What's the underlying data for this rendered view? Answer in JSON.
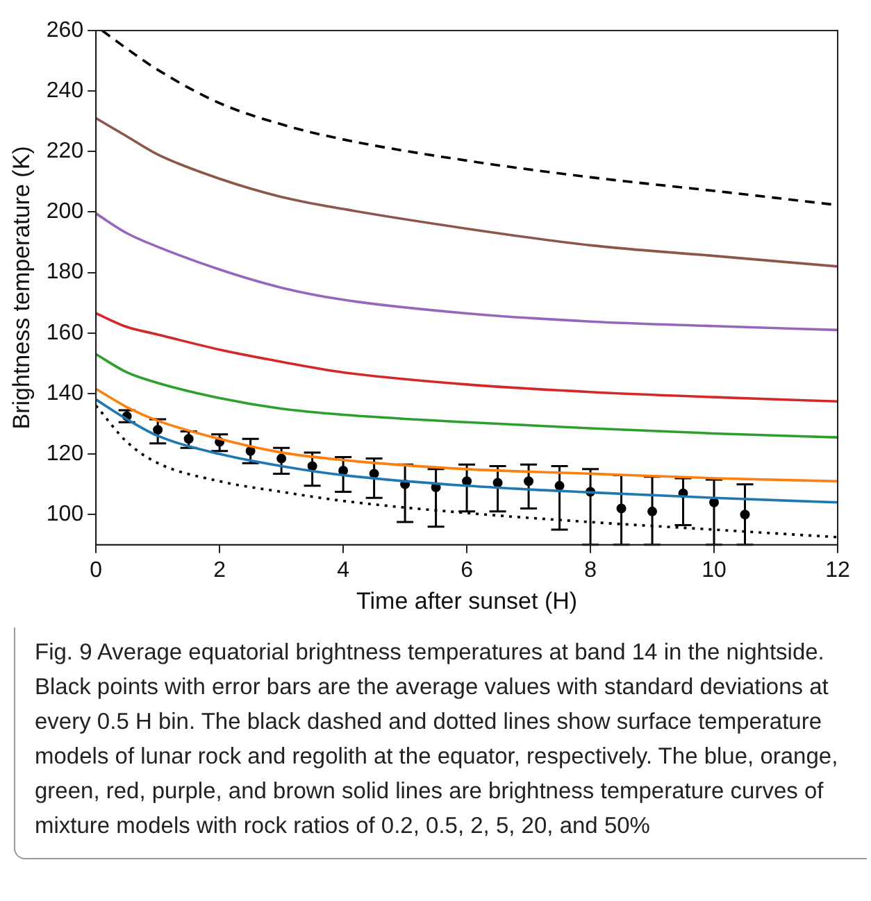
{
  "chart_data": {
    "type": "line",
    "xlabel": "Time after sunset (H)",
    "ylabel": "Brightness temperature (K)",
    "xlim": [
      0,
      12
    ],
    "ylim": [
      90,
      260
    ],
    "xticks": [
      0,
      2,
      4,
      6,
      8,
      10,
      12
    ],
    "yticks": [
      100,
      120,
      140,
      160,
      180,
      200,
      220,
      240,
      260
    ],
    "grid": false,
    "legend": false,
    "annotations": [
      "Fig. 9  Average equatorial brightness temperatures at band 14 in the nightside. Black points with error bars are the average values with standard deviations at every 0.5 H bin. The black dashed and dotted lines show surface temperature models of lunar rock and regolith at the equator, respectively. The blue, orange, green, red, purple, and brown solid lines are brightness temperature curves of mixture models with rock ratios of 0.2, 0.5, 2, 5, 20, and 50%"
    ],
    "series": [
      {
        "color": "#000000",
        "line_style": "dashed",
        "marker": "none",
        "x": [
          0.1,
          0.5,
          1,
          2,
          3,
          4,
          6,
          8,
          10,
          12
        ],
        "values": [
          260,
          254,
          247,
          236,
          229,
          224,
          217,
          211.5,
          207,
          202.3
        ]
      },
      {
        "color": "#8c564b",
        "line_style": "solid",
        "marker": "none",
        "x": [
          0,
          0.5,
          1,
          2,
          3,
          4,
          6,
          8,
          10,
          12
        ],
        "values": [
          231,
          225,
          219,
          211,
          205,
          201,
          194.5,
          189,
          185.5,
          182
        ]
      },
      {
        "color": "#9467bd",
        "line_style": "solid",
        "marker": "none",
        "x": [
          0,
          0.5,
          1,
          2,
          3,
          4,
          6,
          8,
          10,
          12
        ],
        "values": [
          199.5,
          193,
          188.5,
          181,
          175,
          171,
          166.5,
          163.8,
          162.3,
          161
        ]
      },
      {
        "color": "#d62728",
        "line_style": "solid",
        "marker": "none",
        "x": [
          0,
          0.5,
          1,
          2,
          3,
          4,
          6,
          8,
          10,
          12
        ],
        "values": [
          166.5,
          162,
          159.5,
          154.5,
          150.5,
          147,
          143,
          140.5,
          138.8,
          137.4
        ]
      },
      {
        "color": "#2ca02c",
        "line_style": "solid",
        "marker": "none",
        "x": [
          0,
          0.5,
          1,
          2,
          3,
          4,
          6,
          8,
          10,
          12
        ],
        "values": [
          153,
          147,
          143.5,
          138.5,
          135,
          133,
          130.5,
          128.5,
          126.8,
          125.5
        ]
      },
      {
        "color": "#ff7f0e",
        "line_style": "solid",
        "marker": "none",
        "x": [
          0,
          0.5,
          1,
          2,
          3,
          4,
          6,
          8,
          10,
          12
        ],
        "values": [
          141.5,
          135.5,
          131,
          125,
          120.5,
          118,
          115,
          113.5,
          112,
          111
        ]
      },
      {
        "color": "#1f77b4",
        "line_style": "solid",
        "marker": "none",
        "x": [
          0,
          0.5,
          1,
          2,
          3,
          4,
          6,
          8,
          10,
          12
        ],
        "values": [
          138,
          131.5,
          126,
          120,
          116,
          113,
          109.5,
          107.3,
          105.5,
          104
        ]
      },
      {
        "color": "#000000",
        "line_style": "dotted",
        "marker": "none",
        "x": [
          0,
          0.5,
          1,
          2,
          3,
          4,
          6,
          8,
          10,
          12
        ],
        "values": [
          136,
          124,
          117,
          111,
          107.5,
          104.5,
          100.5,
          97.5,
          95,
          92.5
        ]
      },
      {
        "type": "scatter",
        "color": "#000000",
        "marker": "circle",
        "x": [
          0.5,
          1,
          1.5,
          2,
          2.5,
          3,
          3.5,
          4,
          4.5,
          5,
          5.5,
          6,
          6.5,
          7,
          7.5,
          8,
          8.5,
          9,
          9.5,
          10,
          10.5
        ],
        "values": [
          132.5,
          128,
          125,
          124,
          121,
          118.5,
          116,
          114.5,
          113.5,
          110,
          109,
          111,
          110.5,
          111,
          109.5,
          107.5,
          102,
          101,
          107,
          104,
          100
        ],
        "errors": [
          [
            130.5,
            134.5
          ],
          [
            123.5,
            131.5
          ],
          [
            122,
            127.5
          ],
          [
            121,
            126.5
          ],
          [
            117,
            125
          ],
          [
            113.5,
            122
          ],
          [
            109.5,
            120.5
          ],
          [
            107.5,
            119
          ],
          [
            105.5,
            118.5
          ],
          [
            97.5,
            116.5
          ],
          [
            96,
            115
          ],
          [
            101,
            116.5
          ],
          [
            101,
            116
          ],
          [
            102,
            116.5
          ],
          [
            95,
            116
          ],
          [
            90,
            115
          ],
          [
            90,
            113
          ],
          [
            90,
            112.5
          ],
          [
            96.5,
            112
          ],
          [
            90,
            111.5
          ],
          [
            90,
            110
          ]
        ]
      }
    ]
  }
}
